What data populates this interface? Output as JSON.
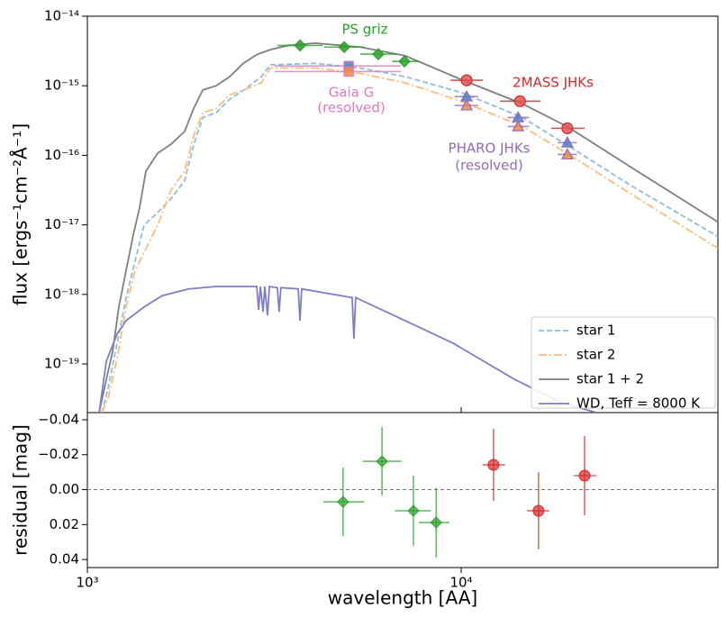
{
  "chart_data": [
    {
      "type": "line",
      "ylabel": "flux [ergs⁻¹cm⁻²Å⁻¹]",
      "log_x": true,
      "log_y": true,
      "xlim": [
        1000,
        48600
      ],
      "ylim": [
        2e-20,
        1e-14
      ],
      "xticks": [
        1000,
        10000
      ],
      "yticks": [
        {
          "value": 1e-19,
          "label": "10⁻¹⁹"
        },
        {
          "value": 1e-18,
          "label": "10⁻¹⁸"
        },
        {
          "value": 1e-17,
          "label": "10⁻¹⁷"
        },
        {
          "value": 1e-16,
          "label": "10⁻¹⁶"
        },
        {
          "value": 1e-15,
          "label": "10⁻¹⁵"
        },
        {
          "value": 1e-14,
          "label": "10⁻¹⁴"
        }
      ],
      "legend": "lower right",
      "series": [
        {
          "name": "star 1",
          "color": "#8fbcdc",
          "dash": "dashed",
          "x": [
            1093,
            1136,
            1201,
            1269,
            1341,
            1418,
            1541,
            1675,
            1820,
            1924,
            2036,
            2210,
            2402,
            2612,
            2918,
            3085,
            4070,
            5370,
            7083,
            10000,
            14580,
            19200,
            28400,
            48600
          ],
          "values": [
            2e-20,
            4.4e-20,
            2e-19,
            8.9e-19,
            3e-18,
            9.9e-18,
            1.5e-17,
            2.4e-17,
            4.3e-17,
            1.4e-16,
            3.5e-16,
            4.1e-16,
            6.4e-16,
            8.6e-16,
            1.35e-15,
            2e-15,
            2.1e-15,
            1.8e-15,
            1.35e-15,
            8e-16,
            3.5e-16,
            1.4e-16,
            3.7e-17,
            6.8e-18
          ]
        },
        {
          "name": "star 2",
          "color": "#ffbb78",
          "dash": "dashdot",
          "x": [
            1093,
            1136,
            1201,
            1269,
            1341,
            1418,
            1541,
            1675,
            1820,
            1924,
            2036,
            2210,
            2402,
            2612,
            2918,
            3085,
            4070,
            5370,
            7083,
            10000,
            14580,
            19200,
            28400,
            48600
          ],
          "values": [
            2e-20,
            3.2e-20,
            1.2e-19,
            6.6e-19,
            2.2e-18,
            4e-18,
            9.9e-18,
            3.2e-17,
            5.9e-17,
            1.9e-16,
            4.1e-16,
            4.7e-16,
            7.4e-16,
            8.6e-16,
            1.1e-15,
            1.8e-15,
            1.8e-15,
            1.5e-15,
            1.1e-15,
            6e-16,
            2.6e-16,
            1.07e-16,
            2.8e-17,
            4.6e-18
          ]
        },
        {
          "name": "star 1 + 2",
          "color": "#7f7f7f",
          "dash": "solid",
          "x": [
            1075,
            1124,
            1168,
            1214,
            1269,
            1327,
            1380,
            1434,
            1541,
            1675,
            1820,
            1924,
            2036,
            2210,
            2402,
            2612,
            2838,
            3085,
            3446,
            4070,
            5370,
            7083,
            10000,
            14580,
            19200,
            28400,
            48600
          ],
          "values": [
            2e-20,
            6e-20,
            1.5e-19,
            6.6e-19,
            2.2e-18,
            7.2e-18,
            1.8e-17,
            5.9e-17,
            1.07e-16,
            1.45e-16,
            2.2e-16,
            4.7e-16,
            8.7e-16,
            1e-15,
            1.35e-15,
            2.1e-15,
            2.8e-15,
            3.3e-15,
            3.8e-15,
            4.1e-15,
            3.6e-15,
            2.7e-15,
            1.23e-15,
            5.5e-16,
            2.6e-16,
            6.8e-17,
            1.1e-17
          ]
        },
        {
          "name": "WD, Teff = 8000 K",
          "color": "#7b7fc4",
          "dash": "solid",
          "x": [
            1075,
            1124,
            1201,
            1269,
            1418,
            1585,
            1865,
            2210,
            2839,
            2871,
            2903,
            2951,
            2982,
            3034,
            3068,
            3222,
            3258,
            3293,
            3665,
            3704,
            3744,
            5108,
            5165,
            5220,
            7080,
            9500,
            13900,
            18500,
            23000
          ],
          "values": [
            2e-20,
            1.1e-19,
            2.7e-19,
            4.2e-19,
            6.6e-19,
            9.6e-19,
            1.2e-18,
            1.3e-18,
            1.3e-18,
            6e-19,
            1.3e-18,
            5.6e-19,
            1.3e-18,
            5e-19,
            1.3e-18,
            1.25e-18,
            5.6e-19,
            1.25e-18,
            1.2e-18,
            4.2e-19,
            1.2e-18,
            9e-19,
            2.3e-19,
            9e-19,
            4.2e-19,
            2e-19,
            6e-20,
            2.8e-20,
            2e-20
          ]
        }
      ],
      "photometry": [
        {
          "annotation": [
            "PS griz"
          ],
          "color": "#2ca02c",
          "sets": [
            {
              "marker": "diamond",
              "fill": "#2ca02c",
              "x": [
                3706,
                4864,
                6000,
                7050
              ],
              "values": [
                3.8e-15,
                3.6e-15,
                2.85e-15,
                2.24e-15
              ],
              "x_lo": [
                3222,
                4300,
                5370,
                6530
              ],
              "x_hi": [
                4256,
                5520,
                6700,
                7700
              ]
            }
          ]
        },
        {
          "annotation": [
            "Gaia G",
            "(resolved)"
          ],
          "color": "#e377c2",
          "sets": [
            {
              "marker": "square",
              "fill": "#4a7fc1",
              "x": [
                5000
              ],
              "values": [
                1.93e-15
              ],
              "x_lo": [
                3170
              ],
              "x_hi": [
                6900
              ]
            },
            {
              "marker": "square",
              "fill": "#f08a3c",
              "x": [
                5000
              ],
              "values": [
                1.6e-15
              ],
              "x_lo": [
                3170
              ],
              "x_hi": [
                6900
              ]
            }
          ]
        },
        {
          "annotation": [
            "2MASS JHKs"
          ],
          "color": "#d62728",
          "sets": [
            {
              "marker": "circle",
              "fill": "#e05555",
              "x": [
                10340,
                14360,
                19230
              ],
              "values": [
                1.2e-15,
                6e-16,
                2.45e-16
              ],
              "x_lo": [
                9360,
                12700,
                17400
              ],
              "x_hi": [
                11430,
                16300,
                21400
              ]
            }
          ]
        },
        {
          "annotation": [
            "PHARO JHKs",
            "(resolved)"
          ],
          "color": "#9467bd",
          "sets": [
            {
              "marker": "triangle",
              "fill": "#4a7fc1",
              "x": [
                10340,
                14200,
                19230
              ],
              "values": [
                7e-16,
                3.5e-16,
                1.52e-16
              ],
              "x_lo": [
                9600,
                13300,
                18100
              ],
              "x_hi": [
                11100,
                15200,
                20400
              ]
            },
            {
              "marker": "triangle",
              "fill": "#f08a3c",
              "x": [
                10340,
                14200,
                19230
              ],
              "values": [
                5.2e-16,
                2.6e-16,
                1.03e-16
              ],
              "x_lo": [
                9600,
                13300,
                18100
              ],
              "x_hi": [
                11100,
                15200,
                20400
              ]
            }
          ]
        }
      ]
    },
    {
      "type": "scatter",
      "xlabel": "wavelength [AA]",
      "ylabel": "residual [mag]",
      "log_x": true,
      "xlim": [
        1000,
        48600
      ],
      "ylim": [
        0.0446,
        -0.0441
      ],
      "xticks": [
        {
          "value": 1000,
          "label": "10³"
        },
        {
          "value": 10000,
          "label": "10⁴"
        }
      ],
      "yticks": [
        {
          "value": -0.04,
          "label": "−0.04"
        },
        {
          "value": -0.02,
          "label": "−0.02"
        },
        {
          "value": 0,
          "label": "0.00"
        },
        {
          "value": 0.02,
          "label": "0.02"
        },
        {
          "value": 0.04,
          "label": "0.04"
        }
      ],
      "hline": 0,
      "groups": [
        {
          "marker": "diamond",
          "color": "#2ca02c",
          "x": [
            4830,
            6140,
            7450,
            8570
          ],
          "values": [
            0.007,
            -0.0162,
            0.0121,
            0.0188
          ],
          "yerr": [
            0.0196,
            0.0196,
            0.02,
            0.02
          ],
          "x_lo": [
            4280,
            5450,
            6650,
            7700
          ],
          "x_hi": [
            5500,
            6920,
            8300,
            9300
          ]
        },
        {
          "marker": "circle",
          "color": "#d62728",
          "x": [
            12200,
            16100,
            21380
          ],
          "values": [
            -0.0142,
            0.0121,
            -0.008
          ],
          "yerr": [
            0.0207,
            0.022,
            0.0227
          ],
          "x_lo": [
            11400,
            15000,
            20000
          ],
          "x_hi": [
            13100,
            17200,
            23000
          ]
        }
      ]
    }
  ]
}
